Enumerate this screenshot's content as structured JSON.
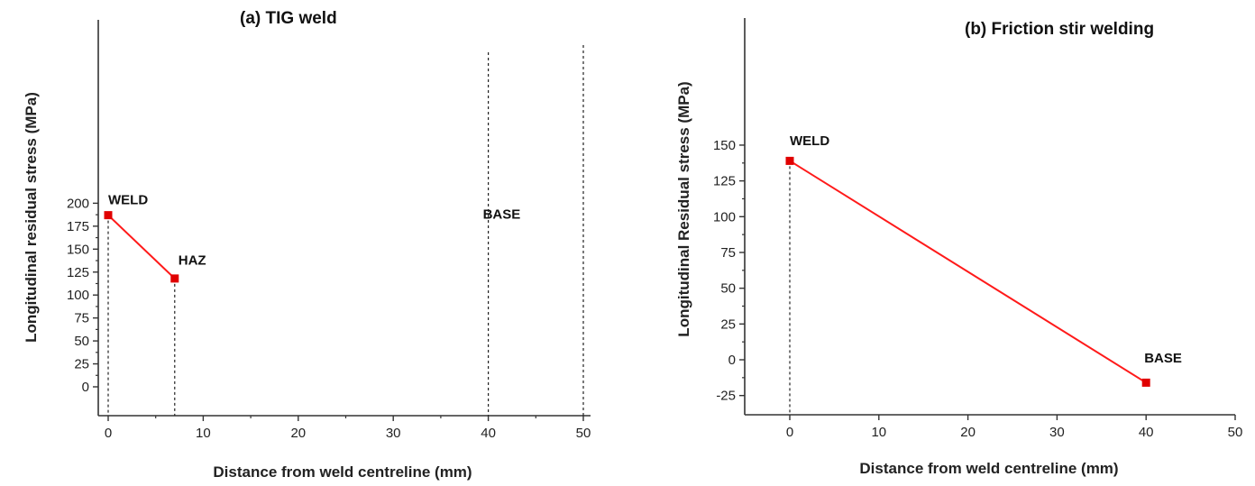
{
  "chart_data": [
    {
      "type": "line",
      "title": "(a) TIG weld",
      "xlabel": "Distance from weld centreline (mm)",
      "ylabel": "Longitudinal residual stress (MPa)",
      "xlim": [
        -1,
        50
      ],
      "ylim": [
        -15,
        200
      ],
      "xticks": [
        0,
        10,
        20,
        30,
        40,
        50
      ],
      "yticks": [
        0,
        25,
        50,
        75,
        100,
        125,
        150,
        175,
        200
      ],
      "series": [
        {
          "x": [
            0,
            7
          ],
          "y": [
            187,
            118
          ],
          "color": "#ff1a1a"
        }
      ],
      "vlines": [
        0,
        7,
        40,
        50
      ],
      "annotations": [
        {
          "text": "WELD",
          "x": 0,
          "y": 200
        },
        {
          "text": "HAZ",
          "x": 7,
          "y": 128
        },
        {
          "text": "BASE",
          "x": 40,
          "y": 188
        }
      ],
      "grid": false
    },
    {
      "type": "line",
      "title": "(b) Friction stir welding",
      "xlabel": "Distance from weld centreline (mm)",
      "ylabel": "Longitudinal Residual stress (MPa)",
      "xlim": [
        -5,
        50
      ],
      "ylim": [
        -25,
        160
      ],
      "xticks": [
        0,
        10,
        20,
        30,
        40,
        50
      ],
      "yticks": [
        -25,
        0,
        25,
        50,
        75,
        100,
        125,
        150
      ],
      "series": [
        {
          "x": [
            0,
            40
          ],
          "y": [
            139,
            -16
          ],
          "color": "#ff1a1a"
        }
      ],
      "vlines": [
        0
      ],
      "annotations": [
        {
          "text": "WELD",
          "x": 0,
          "y": 150
        },
        {
          "text": "BASE",
          "x": 40,
          "y": -2
        }
      ],
      "grid": false
    }
  ]
}
